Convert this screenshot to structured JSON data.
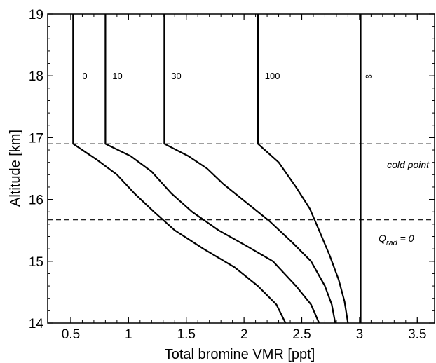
{
  "chart_data": {
    "type": "line",
    "xlabel": "Total bromine VMR [ppt]",
    "ylabel": "Altitude [km]",
    "xlim": [
      0.3,
      3.65
    ],
    "ylim": [
      14,
      19
    ],
    "x_ticks": [
      "0.5",
      "1",
      "1.5",
      "2",
      "2.5",
      "3",
      "3.5"
    ],
    "y_ticks": [
      "14",
      "15",
      "16",
      "17",
      "18",
      "19"
    ],
    "series": [
      {
        "name": "0",
        "points": [
          [
            0.52,
            19
          ],
          [
            0.52,
            16.9
          ],
          [
            0.72,
            16.65
          ],
          [
            0.9,
            16.4
          ],
          [
            1.05,
            16.1
          ],
          [
            1.22,
            15.8
          ],
          [
            1.4,
            15.5
          ],
          [
            1.65,
            15.2
          ],
          [
            1.92,
            14.9
          ],
          [
            2.12,
            14.6
          ],
          [
            2.28,
            14.3
          ],
          [
            2.36,
            14.0
          ]
        ]
      },
      {
        "name": "10",
        "points": [
          [
            0.8,
            19
          ],
          [
            0.8,
            16.9
          ],
          [
            1.02,
            16.7
          ],
          [
            1.2,
            16.45
          ],
          [
            1.37,
            16.1
          ],
          [
            1.55,
            15.8
          ],
          [
            1.78,
            15.5
          ],
          [
            2.02,
            15.25
          ],
          [
            2.25,
            15.0
          ],
          [
            2.45,
            14.6
          ],
          [
            2.58,
            14.3
          ],
          [
            2.65,
            14.0
          ]
        ]
      },
      {
        "name": "30",
        "points": [
          [
            1.31,
            19
          ],
          [
            1.31,
            16.9
          ],
          [
            1.52,
            16.7
          ],
          [
            1.68,
            16.5
          ],
          [
            1.82,
            16.25
          ],
          [
            2.02,
            15.95
          ],
          [
            2.22,
            15.65
          ],
          [
            2.42,
            15.3
          ],
          [
            2.58,
            15.0
          ],
          [
            2.7,
            14.6
          ],
          [
            2.76,
            14.3
          ],
          [
            2.79,
            14.0
          ]
        ]
      },
      {
        "name": "100",
        "points": [
          [
            2.12,
            19
          ],
          [
            2.12,
            16.9
          ],
          [
            2.3,
            16.6
          ],
          [
            2.45,
            16.2
          ],
          [
            2.57,
            15.85
          ],
          [
            2.65,
            15.5
          ],
          [
            2.74,
            15.1
          ],
          [
            2.82,
            14.7
          ],
          [
            2.87,
            14.35
          ],
          [
            2.9,
            14.0
          ]
        ]
      },
      {
        "name": "∞",
        "points": [
          [
            3.01,
            19
          ],
          [
            3.01,
            14.0
          ]
        ]
      }
    ],
    "curve_labels": [
      {
        "text": "0",
        "x": 0.6,
        "y": 18.0
      },
      {
        "text": "10",
        "x": 0.86,
        "y": 18.0
      },
      {
        "text": "30",
        "x": 1.37,
        "y": 18.0
      },
      {
        "text": "100",
        "x": 2.18,
        "y": 18.0
      },
      {
        "text": "∞",
        "x": 3.05,
        "y": 18.0
      }
    ],
    "reference_lines": [
      {
        "y": 16.9,
        "label": "cold point",
        "style": "dashed"
      },
      {
        "y": 15.67,
        "label": "Q_rad = 0",
        "style": "dashed"
      }
    ],
    "annotations": {
      "cold_point": "cold point",
      "qrad_main": "Q",
      "qrad_sub": "rad",
      "qrad_rest": " = 0"
    },
    "grid": false
  }
}
